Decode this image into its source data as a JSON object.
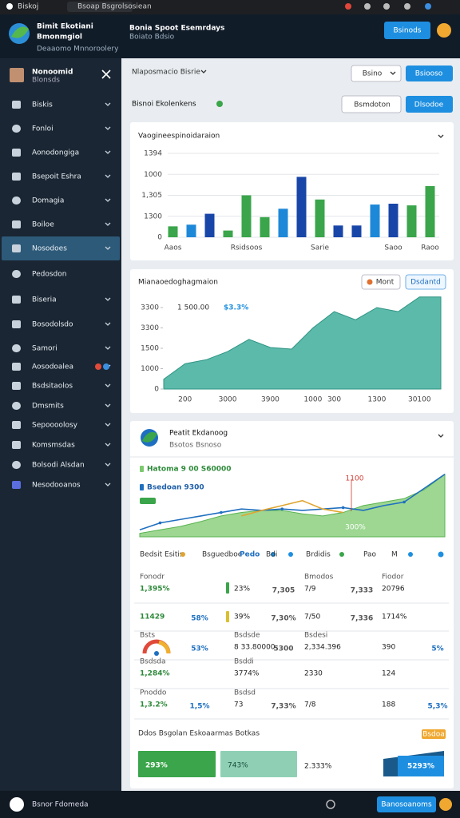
{
  "browser": {
    "tab1": "Biskoj",
    "tab2": "Bsoap Bsgrolsosiean"
  },
  "header": {
    "title": "Bimit Ekotiani",
    "title2": "Bmonmgiol",
    "subtitle": "Deaaomo Mnnoroolery",
    "center_title": "Bonia Spoot Esemrdays",
    "center_sub": "Boiato Bdsio",
    "button": "Bsinods"
  },
  "sidebar": {
    "user": "Nonoomid",
    "role": "Blonsds",
    "items": [
      "Biskis",
      "Fonloi",
      "Aonodongiga",
      "Bsepoit Eshra",
      "Domagia",
      "Boiloe",
      "Nosodoes",
      "Pedosdon",
      "Biseria",
      "Bosodolsdo",
      "Samori",
      "Aosodoalea",
      "Bsdsitaolos",
      "Dmsmits",
      "Sepoooolosy",
      "Komsmsdas",
      "Bolsodi Alsdan",
      "Nesodooanos"
    ]
  },
  "toolbar": {
    "select": "Nlaposmacio Bisrie",
    "button1": "Bsino",
    "button2": "Bsiooso"
  },
  "section": {
    "title": "Bisnoi Ekolenkens",
    "button1": "Bsmdoton",
    "button2": "Dlsodoe"
  },
  "chart_data": [
    {
      "type": "bar",
      "title": "Vaogineespinoidaraion",
      "categories": [
        "Aaos",
        null,
        null,
        null,
        "Rsidsoos",
        null,
        null,
        null,
        "Sarie",
        null,
        null,
        null,
        "Saoo",
        null,
        "Raoo"
      ],
      "values": [
        13,
        15,
        28,
        8,
        50,
        24,
        34,
        72,
        45,
        14,
        14,
        39,
        40,
        38,
        61
      ],
      "colors": [
        "#3aa54a",
        "#1e88d8",
        "#1846a8",
        "#3aa54a",
        "#3aa54a",
        "#3aa54a",
        "#1e88d8",
        "#1846a8",
        "#3aa54a",
        "#1846a8",
        "#1846a8",
        "#1e88d8",
        "#1846a8",
        "#3aa54a",
        "#3aa54a"
      ],
      "ylim": [
        0,
        100
      ],
      "yticks": [
        0,
        {
          "value": 25,
          "label": "1300"
        },
        {
          "value": 50,
          "label": "1,305"
        },
        {
          "value": 75,
          "label": "1000"
        },
        {
          "value": 100,
          "label": "1394"
        }
      ],
      "grid": true
    },
    {
      "type": "area",
      "title": "Mianaoedoghagmaion",
      "buttons": [
        "Mont",
        "Dsdantd"
      ],
      "annotations": [
        "1 500.00",
        "$3.3%"
      ],
      "categories": [
        null,
        "200",
        null,
        "3000",
        null,
        "3900",
        null,
        "1000",
        "300",
        null,
        "1300",
        null,
        "30100",
        null
      ],
      "values": [
        12,
        31,
        36,
        46,
        61,
        51,
        49,
        75,
        95,
        85,
        100,
        95,
        113,
        113
      ],
      "color": "#3fae9b",
      "ylim": [
        0,
        115
      ],
      "yticks": [
        0,
        {
          "value": 25,
          "label": "1000"
        },
        {
          "value": 50,
          "label": "1500"
        },
        {
          "value": 75,
          "label": "3300"
        },
        {
          "value": 100,
          "label": "3300"
        }
      ],
      "grid": false
    },
    {
      "type": "line",
      "title": "Peatit Ekdanoog",
      "subtitle": "Bsotos Bsnoso",
      "annotations": [
        "1100",
        "300%"
      ],
      "categories": [
        null,
        null,
        null,
        null,
        null,
        null,
        null,
        null,
        null,
        null,
        null,
        null,
        null,
        null,
        null,
        null
      ],
      "series": [
        {
          "name": "Hatoma 9 00 S60000",
          "color": "#7cc96e",
          "values": [
            5,
            10,
            15,
            22,
            30,
            35,
            38,
            38,
            33,
            30,
            35,
            45,
            50,
            55,
            68,
            90
          ]
        },
        {
          "name": "Bsedoan 9300",
          "color": "#1f6fc0",
          "values": [
            10,
            20,
            25,
            30,
            35,
            40,
            38,
            40,
            38,
            40,
            42,
            38,
            45,
            50,
            70,
            90
          ]
        },
        {
          "color": "#e0a530",
          "values": [
            null,
            null,
            null,
            null,
            null,
            30,
            38,
            45,
            52,
            40,
            35,
            null,
            null,
            null,
            null,
            null
          ]
        }
      ],
      "ylim": [
        0,
        100
      ]
    }
  ],
  "panel3": {
    "legend_row": [
      "Bedsit Esitis",
      "Bsguedboe",
      "Pedo",
      "Bdi",
      "Brdidis",
      "Pao",
      "M"
    ],
    "stats": [
      [
        {
          "label": "Fonodr",
          "value": "1,395%"
        },
        {
          "value": "23%",
          "delta": "7,305"
        },
        {
          "label": "Bmodos",
          "value": "7/9",
          "delta": "7,333"
        },
        {
          "label": "Fiodor",
          "value": "20796"
        }
      ],
      [
        {
          "value": "11429",
          "delta": "58%"
        },
        {
          "value": "39%",
          "delta": "7,30%"
        },
        {
          "value": "7/50",
          "delta": "7,336"
        },
        {
          "value": "1714%"
        }
      ],
      [
        {
          "label": "Bsts",
          "delta": "53%"
        },
        {
          "label": "Bsdsde",
          "value": "8 33.80000",
          "delta": "5300"
        },
        {
          "label": "Bsdesi",
          "value": "2,334.396"
        },
        {
          "value": "390",
          "delta": "5%"
        }
      ],
      [
        {
          "label": "Bsdsda",
          "value": "1,284%"
        },
        {
          "label": "Bsddi",
          "value": "3774%"
        },
        {
          "value": "2330"
        },
        {
          "value": "124"
        }
      ],
      [
        {
          "label": "Pnoddo",
          "value": "1,3.2%",
          "delta": "1,5%"
        },
        {
          "label": "Bsdsd",
          "value": "73",
          "delta": "7,33%"
        },
        {
          "value": "7/8"
        },
        {
          "value": "188",
          "delta": "5,3%"
        }
      ]
    ],
    "footer": "Ddos Bsgolan Eskoaarmas Botkas",
    "badge": "Bsdoa",
    "bottom_bars": [
      "293%",
      "743%",
      "2.333%",
      "5293%"
    ]
  },
  "bottombar": {
    "user": "Bsnor Fdomeda",
    "button": "Banosoanoms"
  }
}
